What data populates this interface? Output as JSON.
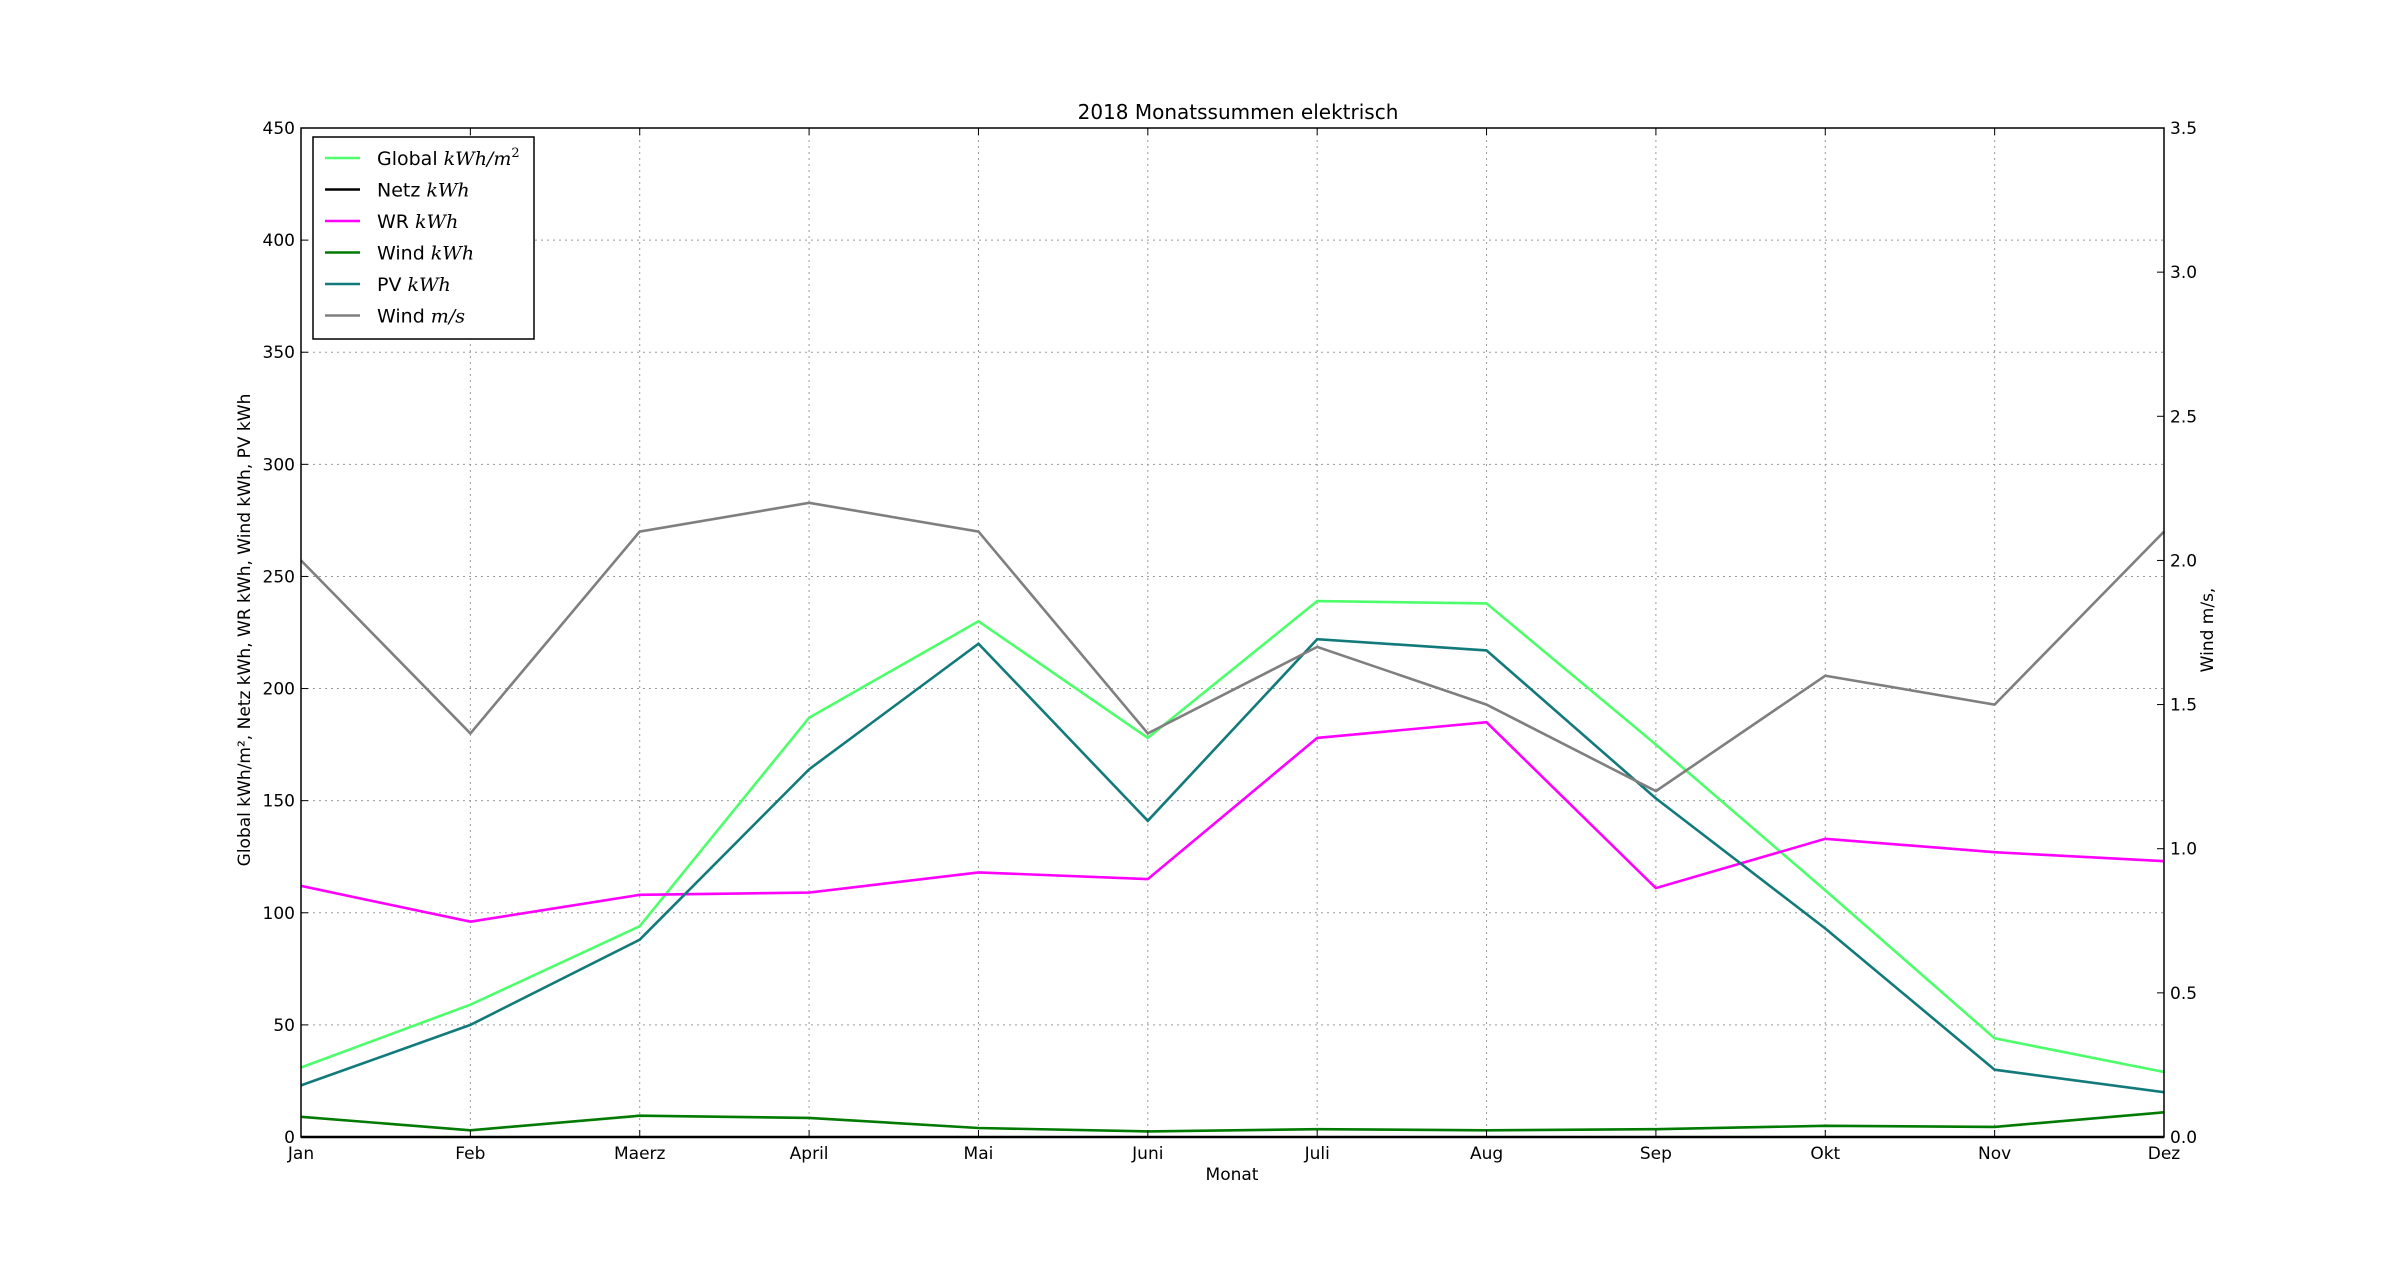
{
  "chart_data": {
    "type": "line",
    "title": "2018 Monatssummen elektrisch",
    "xlabel": "Monat",
    "ylabel_left": "Global kWh/m², Netz kWh, WR kWh, Wind kWh, PV kWh",
    "ylabel_right": "Wind m/s,",
    "categories": [
      "Jan",
      "Feb",
      "Maerz",
      "April",
      "Mai",
      "Juni",
      "Juli",
      "Aug",
      "Sep",
      "Okt",
      "Nov",
      "Dez"
    ],
    "ylim_left": [
      0,
      450
    ],
    "yticks_left": [
      0,
      50,
      100,
      150,
      200,
      250,
      300,
      350,
      400,
      450
    ],
    "ylim_right": [
      0,
      3.5
    ],
    "yticks_right": [
      "0.0",
      "0.5",
      "1.0",
      "1.5",
      "2.0",
      "2.5",
      "3.0",
      "3.5"
    ],
    "grid": true,
    "legend_position": "top-left",
    "series": [
      {
        "name": "Global kWh/m²",
        "name_plain": "Global ",
        "name_math": "kWh/m",
        "name_sup": "2",
        "axis": "left",
        "color": "#4dff6a",
        "values": [
          31,
          59,
          94,
          187,
          230,
          178,
          239,
          238,
          175,
          110,
          44,
          29
        ]
      },
      {
        "name": "Netz kWh",
        "name_plain": "Netz ",
        "name_math": "kWh",
        "name_sup": "",
        "axis": "left",
        "color": "#000000",
        "values": [
          0,
          0,
          0,
          0,
          0,
          0,
          0,
          0,
          0,
          0,
          0,
          0
        ]
      },
      {
        "name": "WR kWh",
        "name_plain": "WR ",
        "name_math": "kWh",
        "name_sup": "",
        "axis": "left",
        "color": "#ff00ff",
        "values": [
          112,
          96,
          108,
          109,
          118,
          115,
          178,
          185,
          111,
          133,
          127,
          123
        ]
      },
      {
        "name": "Wind kWh",
        "name_plain": "Wind ",
        "name_math": "kWh",
        "name_sup": "",
        "axis": "left",
        "color": "#007a00",
        "values": [
          9,
          3,
          9.5,
          8.5,
          4,
          2.5,
          3.5,
          3,
          3.5,
          5,
          4.5,
          11
        ]
      },
      {
        "name": "PV kWh",
        "name_plain": "PV ",
        "name_math": "kWh",
        "name_sup": "",
        "axis": "left",
        "color": "#127a7a",
        "values": [
          23,
          50,
          88,
          164,
          220,
          141,
          222,
          217,
          151,
          93,
          30,
          20
        ]
      },
      {
        "name": "Wind m/s",
        "name_plain": "Wind ",
        "name_math": "m/s",
        "name_sup": "",
        "axis": "right",
        "color": "#7f7f7f",
        "values": [
          2.0,
          1.4,
          2.1,
          2.2,
          2.1,
          1.4,
          1.7,
          1.5,
          1.2,
          1.6,
          1.5,
          2.1
        ]
      }
    ]
  }
}
